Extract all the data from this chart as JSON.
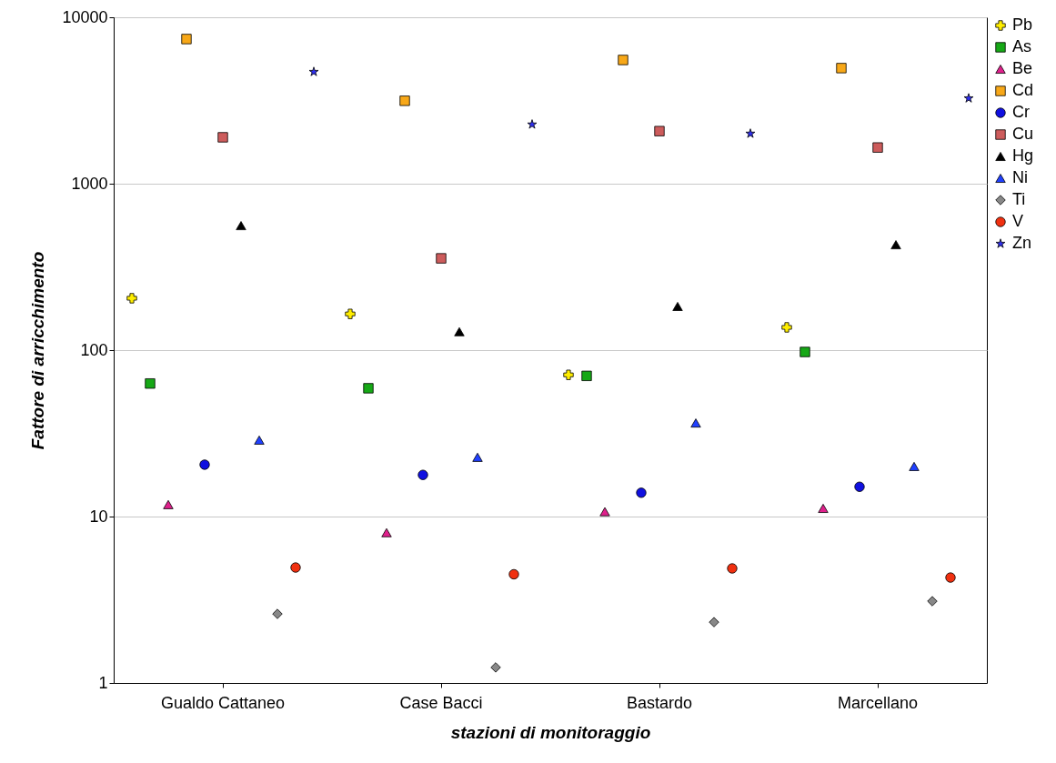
{
  "chart_data": {
    "type": "scatter",
    "xlabel": "stazioni di monitoraggio",
    "ylabel": "Fattore di arricchimento",
    "categories": [
      "Gualdo Cattaneo",
      "Case Bacci",
      "Bastardo",
      "Marcellano"
    ],
    "log": "y",
    "ylim": [
      1,
      10000
    ],
    "yticks": [
      1,
      10,
      100,
      1000,
      10000
    ],
    "grid": "y",
    "legend": "right",
    "series": [
      {
        "name": "Pb",
        "color": "#ffee00",
        "marker": "cross",
        "values": [
          205,
          165,
          71,
          137
        ]
      },
      {
        "name": "As",
        "color": "#16a816",
        "marker": "square",
        "values": [
          63,
          59,
          70,
          97.5
        ]
      },
      {
        "name": "Be",
        "color": "#e0208c",
        "marker": "triangle",
        "values": [
          11.8,
          8.0,
          10.7,
          11.2
        ]
      },
      {
        "name": "Cd",
        "color": "#f8a818",
        "marker": "square",
        "values": [
          7400,
          3150,
          5540,
          4950
        ]
      },
      {
        "name": "Cr",
        "color": "#1010e0",
        "marker": "circle",
        "values": [
          20.5,
          17.8,
          13.9,
          15.1
        ]
      },
      {
        "name": "Cu",
        "color": "#cd5c5c",
        "marker": "square",
        "values": [
          1900,
          356,
          2070,
          1650
        ]
      },
      {
        "name": "Hg",
        "color": "#000000",
        "marker": "triangle",
        "values": [
          560,
          129,
          183,
          430
        ]
      },
      {
        "name": "Ni",
        "color": "#2040ff",
        "marker": "triangle",
        "values": [
          28.8,
          22.7,
          36.5,
          20
        ]
      },
      {
        "name": "Ti",
        "color": "#888888",
        "marker": "diamond",
        "values": [
          2.6,
          1.24,
          2.32,
          3.1
        ]
      },
      {
        "name": "V",
        "color": "#f03010",
        "marker": "circle",
        "values": [
          4.94,
          4.5,
          4.88,
          4.3
        ]
      },
      {
        "name": "Zn",
        "color": "#3030f0",
        "marker": "star",
        "values": [
          4700,
          2270,
          2000,
          3260
        ]
      }
    ]
  }
}
